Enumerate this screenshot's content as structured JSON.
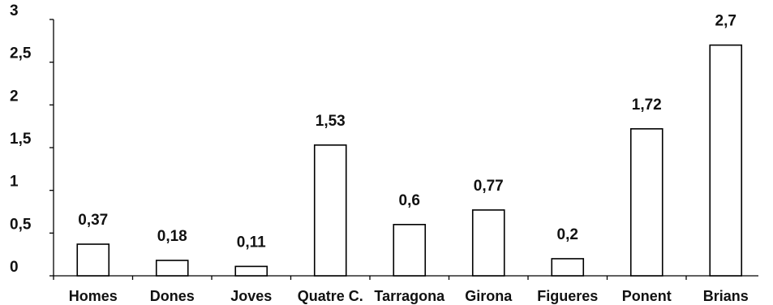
{
  "chart_data": {
    "type": "bar",
    "categories": [
      "Homes",
      "Dones",
      "Joves",
      "Quatre C.",
      "Tarragona",
      "Girona",
      "Figueres",
      "Ponent",
      "Brians"
    ],
    "values": [
      0.37,
      0.18,
      0.11,
      1.53,
      0.6,
      0.77,
      0.2,
      1.72,
      2.7
    ],
    "value_labels": [
      "0,37",
      "0,18",
      "0,11",
      "1,53",
      "0,6",
      "0,77",
      "0,2",
      "1,72",
      "2,7"
    ],
    "y_ticks": [
      0,
      0.5,
      1,
      1.5,
      2,
      2.5,
      3
    ],
    "y_tick_labels": [
      "0",
      "0,5",
      "1",
      "1,5",
      "2",
      "2,5",
      "3"
    ],
    "ylim": [
      0,
      3
    ],
    "title": "",
    "xlabel": "",
    "ylabel": "",
    "grid": false,
    "legend": "none",
    "bar_fill": "#ffffff",
    "bar_stroke": "#000000",
    "axis_color": "#000000"
  }
}
